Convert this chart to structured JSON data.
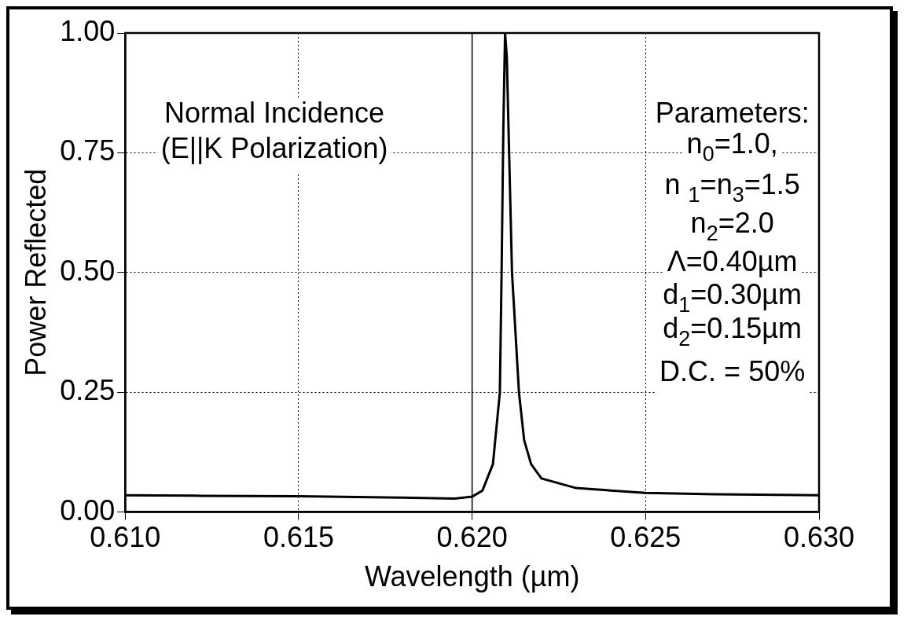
{
  "chart_data": {
    "type": "line",
    "xlabel": "Wavelength (µm)",
    "ylabel": "Power Reflected",
    "x": [
      0.61,
      0.612,
      0.615,
      0.618,
      0.6195,
      0.62,
      0.6203,
      0.6206,
      0.6208,
      0.62085,
      0.6209,
      0.62095,
      0.621,
      0.62115,
      0.62135,
      0.6215,
      0.6217,
      0.622,
      0.623,
      0.624,
      0.625,
      0.627,
      0.63
    ],
    "series": [
      {
        "color": "#000000",
        "values": [
          0.035,
          0.034,
          0.033,
          0.03,
          0.028,
          0.032,
          0.045,
          0.1,
          0.25,
          0.5,
          0.8,
          1.0,
          0.95,
          0.5,
          0.25,
          0.15,
          0.1,
          0.07,
          0.05,
          0.045,
          0.04,
          0.037,
          0.035
        ]
      }
    ],
    "xlim": [
      0.61,
      0.63
    ],
    "xticks": [
      {
        "value": 0.61,
        "label": "0.610"
      },
      {
        "value": 0.615,
        "label": "0.615"
      },
      {
        "value": 0.62,
        "label": "0.620"
      },
      {
        "value": 0.625,
        "label": "0.625"
      },
      {
        "value": 0.63,
        "label": "0.630"
      }
    ],
    "ylim": [
      0,
      1
    ],
    "yticks": [
      {
        "value": 0,
        "label": "0.00"
      },
      {
        "value": 0.25,
        "label": "0.25"
      },
      {
        "value": 0.5,
        "label": "0.50"
      },
      {
        "value": 0.75,
        "label": "0.75"
      },
      {
        "value": 1,
        "label": "1.00"
      }
    ],
    "grid": true,
    "marker": "none",
    "line_style": "solid",
    "ref_lines": [
      {
        "axis": "x",
        "value": 0.62
      }
    ],
    "annotations": [
      "Normal Incidence",
      "(E||K Polarization)",
      "Parameters:",
      "n$_{0}$=1.0,",
      "n $_{1}$=n$_{3}$=1.5",
      "n$_{2}$=2.0",
      "Λ=0.40µm",
      "d$_{1}$=0.30µm",
      "d$_{2}$=0.15µm",
      "D.C. = 50%"
    ]
  }
}
